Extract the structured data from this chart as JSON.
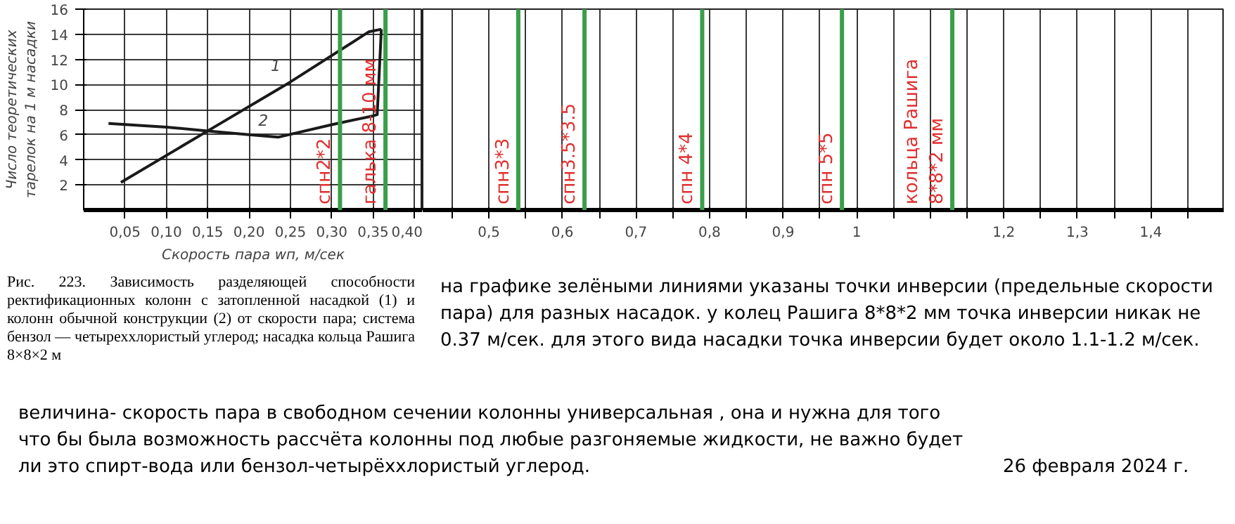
{
  "chart_data": [
    {
      "type": "line",
      "xlabel": "Скорость пара wп, м/сек",
      "ylabel": "Число теоретических\nтарелок на 1 м насадки",
      "xlim": [
        0.0,
        0.41
      ],
      "ylim": [
        0,
        16
      ],
      "xticks": [
        {
          "value": 0.05,
          "label": "0,05"
        },
        {
          "value": 0.1,
          "label": "0,10"
        },
        {
          "value": 0.15,
          "label": "0,15"
        },
        {
          "value": 0.2,
          "label": "0,20"
        },
        {
          "value": 0.25,
          "label": "0,25"
        },
        {
          "value": 0.3,
          "label": "0,30"
        },
        {
          "value": 0.35,
          "label": "0,35"
        },
        {
          "value": 0.4,
          "label": "0,40"
        }
      ],
      "yticks": [
        2,
        4,
        6,
        8,
        10,
        12,
        14,
        16
      ],
      "grid": true,
      "series": [
        {
          "name": "1",
          "color": "#1a1a1a",
          "x": [
            0.045,
            0.15,
            0.25,
            0.345,
            0.36
          ],
          "values": [
            2.2,
            6.3,
            10.2,
            14.2,
            14.4
          ]
        },
        {
          "name": "2",
          "color": "#1a1a1a",
          "x": [
            0.03,
            0.1,
            0.15,
            0.2,
            0.235,
            0.3,
            0.35,
            0.355,
            0.36
          ],
          "values": [
            6.9,
            6.6,
            6.3,
            6.0,
            5.8,
            6.8,
            7.5,
            7.6,
            14.4
          ]
        }
      ],
      "ref_lines": [
        {
          "axis": "x",
          "value": 0.31,
          "label": "спн2*2",
          "color": "#3a9e4a"
        },
        {
          "axis": "x",
          "value": 0.365,
          "label": "галька 8-10 мм",
          "color": "#3a9e4a"
        }
      ],
      "annotations": [
        "Рис. 223. Зависимость разделяющей способности ректификационных колонн с затопленной насадкой (1) и колонн обычной конструкции (2) от скорости пара; система бензол — четыреххлористый углерод; насадка кольца Рашига 8×8×2 м"
      ]
    },
    {
      "type": "line",
      "xlim": [
        0.41,
        1.5
      ],
      "ylim": [
        0,
        16
      ],
      "tick_labels": "x",
      "grid": "x",
      "xticks": [
        {
          "value": 0.45,
          "label": null
        },
        {
          "value": 0.5,
          "label": "0,5"
        },
        {
          "value": 0.55,
          "label": null
        },
        {
          "value": 0.6,
          "label": "0,6"
        },
        {
          "value": 0.65,
          "label": null
        },
        {
          "value": 0.7,
          "label": "0,7"
        },
        {
          "value": 0.75,
          "label": null
        },
        {
          "value": 0.8,
          "label": "0,8"
        },
        {
          "value": 0.85,
          "label": null
        },
        {
          "value": 0.9,
          "label": "0,9"
        },
        {
          "value": 0.95,
          "label": null
        },
        {
          "value": 1.0,
          "label": "1"
        },
        {
          "value": 1.05,
          "label": null
        },
        {
          "value": 1.1,
          "label": null
        },
        {
          "value": 1.15,
          "label": null
        },
        {
          "value": 1.2,
          "label": "1,2"
        },
        {
          "value": 1.25,
          "label": null
        },
        {
          "value": 1.3,
          "label": "1,3"
        },
        {
          "value": 1.35,
          "label": null
        },
        {
          "value": 1.4,
          "label": "1,4"
        },
        {
          "value": 1.45,
          "label": null
        }
      ],
      "ref_lines": [
        {
          "axis": "x",
          "value": 0.54,
          "label": "спн3*3",
          "color": "#3a9e4a"
        },
        {
          "axis": "x",
          "value": 0.63,
          "label": "спн3.5*3.5",
          "color": "#3a9e4a"
        },
        {
          "axis": "x",
          "value": 0.79,
          "label": "спн 4*4",
          "color": "#3a9e4a"
        },
        {
          "axis": "x",
          "value": 0.98,
          "label": "спн 5*5",
          "color": "#3a9e4a"
        },
        {
          "axis": "x",
          "value": 1.13,
          "label": "кольца Рашига\n8*8*2 мм",
          "color": "#3a9e4a"
        }
      ],
      "annotations": [
        "на графике зелёными линиями указаны точки инверсии (предельные скорости пара) для разных насадок.  у колец Рашига 8*8*2 мм  точка инверсии никак не 0.37 м/сек. для этого вида насадки точка инверсии будет около 1.1-1.2 м/сек.",
        "величина- скорость пара в свободном сечении колонны универсальная , она и нужна для того что бы была возможность рассчёта колонны под любые разгоняемые жидкости, не важно будет ли это спирт-вода или бензол-четырёххлористый углерод.",
        "26 февраля 2024 г."
      ]
    }
  ]
}
